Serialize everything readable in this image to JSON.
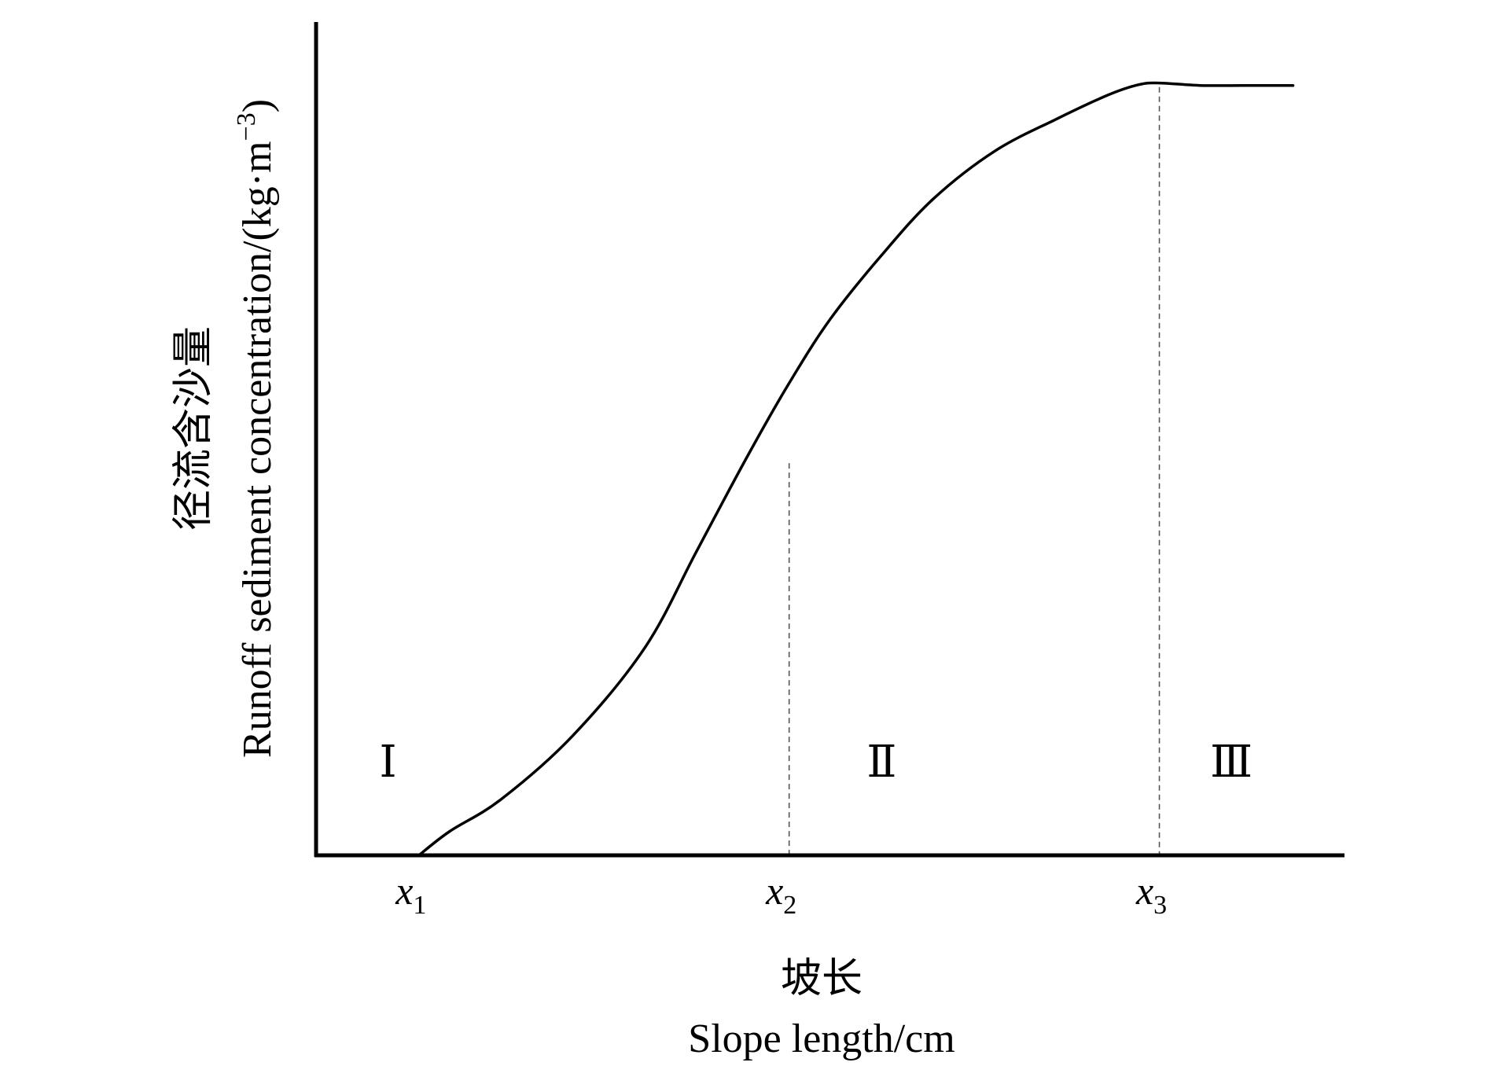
{
  "chart_data": {
    "type": "line",
    "title": "",
    "xlabel_cn": "坡长",
    "xlabel": "Slope length/cm",
    "ylabel_cn": "径流含沙量",
    "ylabel": "Runoff sediment concentration/(kg·m",
    "ylabel_unit_exponent": "−3",
    "ylabel_close": ")",
    "x_ticks": [
      {
        "base": "x",
        "sub": "1",
        "value": 0.1
      },
      {
        "base": "x",
        "sub": "2",
        "value": 0.46
      },
      {
        "base": "x",
        "sub": "3",
        "value": 0.82
      }
    ],
    "regions": [
      {
        "label": "Ⅰ",
        "x": 0.07
      },
      {
        "label": "Ⅱ",
        "x": 0.55
      },
      {
        "label": "Ⅲ",
        "x": 0.89
      }
    ],
    "reference_lines": [
      {
        "x": 0.46,
        "y": 0.49,
        "style": "dashed"
      },
      {
        "x": 0.82,
        "y": 0.96,
        "style": "dashed"
      }
    ],
    "xlim": [
      0,
      1
    ],
    "ylim": [
      0,
      1
    ],
    "grid": false,
    "series": [
      {
        "color": "#000000",
        "x": [
          0.1,
          0.13,
          0.18,
          0.25,
          0.32,
          0.37,
          0.42,
          0.46,
          0.5,
          0.55,
          0.6,
          0.66,
          0.72,
          0.77,
          0.8,
          0.82,
          0.86,
          0.9,
          0.95
        ],
        "y": [
          0.0,
          0.03,
          0.07,
          0.15,
          0.26,
          0.38,
          0.5,
          0.59,
          0.67,
          0.75,
          0.82,
          0.88,
          0.92,
          0.95,
          0.963,
          0.965,
          0.962,
          0.962,
          0.962
        ]
      }
    ],
    "colors": {
      "line": "#000000",
      "reference_line": "#555555",
      "axis": "#000000",
      "background": "#ffffff"
    }
  }
}
